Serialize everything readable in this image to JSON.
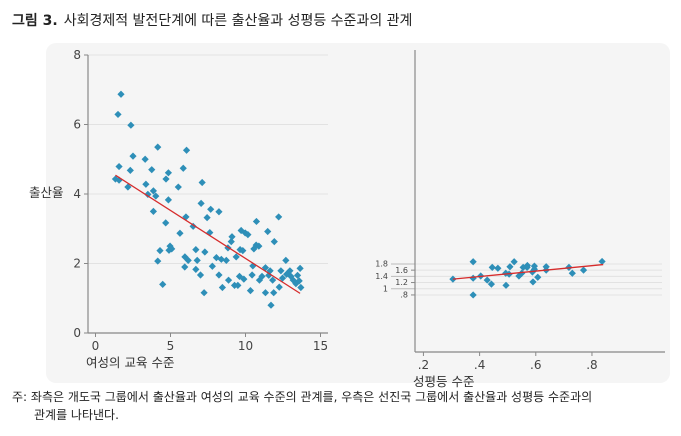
{
  "figure": {
    "label": "그림 3.",
    "title": "사회경제적 발전단계에 따른 출산율과 성평등 수준과의 관계"
  },
  "note": {
    "line1": "주: 좌측은 개도국 그룹에서 출산율과 여성의 교육 수준의 관계를, 우측은 선진국 그룹에서 출산율과 성평등 수준과의",
    "line2": "관계를 나타낸다."
  },
  "colors": {
    "points": "#2e8fb8",
    "fit_line": "#d62c2c",
    "panel": "#f5f5f5"
  },
  "chart_data": [
    {
      "type": "scatter",
      "xlabel": "여성의 교육 수준",
      "ylabel": "출산율",
      "xlim": [
        -0.5,
        15.5
      ],
      "ylim": [
        0,
        8
      ],
      "xticks": [
        "0",
        "5",
        "10",
        "15"
      ],
      "yticks": [
        "0",
        "2",
        "4",
        "6",
        "8"
      ],
      "grid": true,
      "x": [
        1.7,
        1.5,
        2.36,
        2.5,
        1.57,
        1.33,
        1.57,
        2.16,
        2.32,
        3.31,
        4.15,
        3.75,
        3.36,
        3.49,
        3.86,
        4.02,
        3.86,
        4.86,
        4.7,
        4.86,
        4.68,
        4.15,
        4.3,
        4.48,
        4.97,
        5.08,
        4.9,
        6.07,
        5.85,
        5.52,
        6.03,
        5.63,
        6.51,
        5.96,
        6.18,
        5.95,
        6.69,
        6.78,
        6.69,
        7.0,
        7.24,
        7.29,
        7.11,
        7.04,
        7.44,
        7.68,
        8.23,
        7.62,
        7.79,
        8.06,
        8.23,
        8.46,
        8.39,
        8.72,
        8.87,
        8.83,
        9.1,
        9.05,
        9.38,
        9.27,
        9.6,
        9.64,
        9.82,
        9.71,
        9.98,
        10.16,
        9.49,
        9.89,
        10.33,
        10.44,
        10.49,
        10.56,
        10.71,
        10.89,
        10.73,
        10.93,
        11.1,
        11.33,
        11.33,
        11.48,
        11.55,
        11.64,
        11.7,
        11.88,
        11.92,
        11.81,
        12.21,
        12.25,
        12.36,
        12.47,
        12.69,
        12.74,
        12.96,
        13.03,
        13.18,
        13.36,
        13.47,
        13.58,
        13.64,
        13.69
      ],
      "y": [
        6.87,
        6.29,
        5.98,
        5.09,
        4.79,
        4.43,
        4.4,
        4.2,
        4.68,
        5.0,
        5.35,
        4.7,
        4.28,
        3.99,
        4.09,
        3.94,
        3.5,
        4.61,
        4.43,
        3.83,
        3.17,
        2.07,
        2.37,
        1.4,
        2.5,
        2.42,
        2.38,
        5.26,
        4.74,
        4.2,
        3.34,
        2.87,
        3.07,
        2.19,
        2.09,
        1.9,
        2.4,
        2.09,
        1.83,
        1.67,
        1.16,
        2.33,
        4.33,
        3.73,
        3.32,
        3.56,
        3.49,
        2.89,
        1.92,
        2.17,
        1.67,
        1.31,
        2.12,
        2.09,
        1.52,
        2.45,
        2.77,
        2.63,
        2.19,
        1.37,
        1.63,
        2.4,
        2.37,
        2.95,
        2.88,
        2.83,
        1.37,
        1.55,
        1.22,
        1.67,
        1.93,
        2.42,
        2.53,
        2.5,
        3.21,
        1.52,
        1.63,
        1.88,
        1.16,
        2.92,
        1.66,
        1.79,
        0.8,
        1.16,
        2.63,
        1.52,
        3.34,
        1.32,
        1.79,
        1.58,
        2.09,
        1.69,
        1.79,
        1.63,
        1.52,
        1.42,
        1.66,
        1.5,
        1.86,
        1.31
      ],
      "fit_line": {
        "x": [
          1.33,
          13.64
        ],
        "y": [
          4.54,
          1.14
        ]
      }
    },
    {
      "type": "scatter",
      "xlabel": "성평등 수준",
      "xlim": [
        0.17,
        1.06
      ],
      "ylim": [
        -1.04,
        8.7
      ],
      "xticks": [
        ".2",
        ".4",
        ".6",
        ".8"
      ],
      "yticks": [
        ".8",
        "1",
        "1.2",
        "1.4",
        "1.6",
        "1.8"
      ],
      "grid": true,
      "x": [
        0.305,
        0.377,
        0.377,
        0.377,
        0.404,
        0.427,
        0.442,
        0.445,
        0.465,
        0.493,
        0.494,
        0.505,
        0.508,
        0.523,
        0.54,
        0.55,
        0.555,
        0.569,
        0.57,
        0.588,
        0.59,
        0.595,
        0.595,
        0.607,
        0.637,
        0.637,
        0.718,
        0.73,
        0.77,
        0.836
      ],
      "y": [
        1.31,
        1.87,
        1.34,
        0.8,
        1.41,
        1.28,
        1.15,
        1.69,
        1.66,
        1.5,
        1.11,
        1.47,
        1.71,
        1.87,
        1.41,
        1.5,
        1.69,
        1.69,
        1.75,
        1.54,
        1.22,
        1.73,
        1.63,
        1.37,
        1.71,
        1.6,
        1.69,
        1.5,
        1.6,
        1.88
      ],
      "fit_line": {
        "x": [
          0.305,
          0.84
        ],
        "y": [
          1.31,
          1.78
        ]
      }
    }
  ]
}
